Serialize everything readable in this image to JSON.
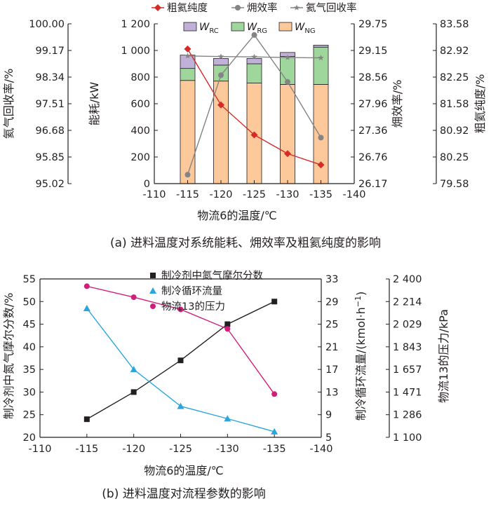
{
  "chart_data": [
    {
      "type": "bar",
      "caption": "(a) 进料温度对系统能耗、㶲效率及粗氦纯度的影响",
      "xlabel": "物流6的温度/℃",
      "x_ticks": [
        "-110",
        "-115",
        "-120",
        "-125",
        "-130",
        "-135",
        "-140"
      ],
      "categories": [
        -115,
        -120,
        -125,
        -130,
        -135
      ],
      "xlim": [
        -110,
        -140
      ],
      "stack_axis": {
        "label": "能耗/kW",
        "ylim": [
          0,
          1200
        ],
        "ticks": [
          "0",
          "200",
          "400",
          "600",
          "800",
          "1 000",
          "1 200"
        ]
      },
      "stacked_series": [
        {
          "name": "W",
          "sub": "NG",
          "color": "#fdc89a",
          "values": [
            775,
            770,
            755,
            745,
            745
          ]
        },
        {
          "name": "W",
          "sub": "RG",
          "color": "#9fd69b",
          "values": [
            90,
            120,
            145,
            210,
            280
          ]
        },
        {
          "name": "W",
          "sub": "RC",
          "color": "#c1b1d8",
          "values": [
            100,
            50,
            40,
            30,
            15
          ]
        }
      ],
      "line_series": [
        {
          "name": "粗氦纯度",
          "axis": "purity",
          "color": "#d42a28",
          "marker": "diamond",
          "values": [
            82.95,
            81.55,
            80.8,
            80.33,
            80.05
          ]
        },
        {
          "name": "㶲效率",
          "axis": "exergy",
          "color": "#848484",
          "marker": "circle",
          "values": [
            26.37,
            28.6,
            29.5,
            28.45,
            27.2
          ]
        },
        {
          "name": "氦气回收率",
          "axis": "recovery",
          "color": "#848484",
          "marker": "star",
          "values": [
            99.0,
            98.98,
            98.97,
            98.95,
            98.94
          ]
        }
      ],
      "axes": {
        "recovery": {
          "label": "氦气回收率/%",
          "ylim": [
            95.02,
            100.0
          ],
          "ticks": [
            "95.02",
            "95.85",
            "96.68",
            "97.51",
            "98.34",
            "99.17",
            "100.00"
          ]
        },
        "exergy": {
          "label": "㶲效率/%",
          "ylim": [
            26.17,
            29.75
          ],
          "ticks": [
            "26.17",
            "26.76",
            "27.36",
            "27.96",
            "28.56",
            "29.15",
            "29.75"
          ]
        },
        "purity": {
          "label": "粗氦纯度/%",
          "ylim": [
            79.58,
            83.58
          ],
          "ticks": [
            "79.58",
            "80.25",
            "80.92",
            "81.58",
            "82.25",
            "82.92",
            "83.58"
          ]
        }
      }
    },
    {
      "type": "line",
      "caption": "(b) 进料温度对流程参数的影响",
      "xlabel": "物流6的温度/℃",
      "x_ticks": [
        "-110",
        "-115",
        "-120",
        "-125",
        "-130",
        "-135",
        "-140"
      ],
      "x": [
        -115,
        -120,
        -125,
        -130,
        -135
      ],
      "xlim": [
        -110,
        -140
      ],
      "series": [
        {
          "name": "制冷剂中氮气摩尔分数",
          "axis": "mole",
          "color": "#231f20",
          "marker": "square",
          "values": [
            24.0,
            30.0,
            37.0,
            45.0,
            50.0
          ]
        },
        {
          "name": "制冷循环流量",
          "axis": "flow",
          "color": "#2aa6dc",
          "marker": "triangle",
          "values": [
            27.8,
            17.0,
            10.5,
            8.3,
            6.0
          ]
        },
        {
          "name": "物流13的压力",
          "axis": "pressure",
          "color": "#cf1f7b",
          "marker": "circle",
          "values": [
            2340,
            2250,
            2150,
            1990,
            1455
          ]
        }
      ],
      "axes": {
        "mole": {
          "label": "制冷剂中氮气摩尔分数/%",
          "ylim": [
            20,
            55
          ],
          "ticks": [
            "20",
            "25",
            "30",
            "35",
            "40",
            "45",
            "50",
            "55"
          ]
        },
        "flow": {
          "label_main": "制冷循环流量/(kmol·h",
          "label_sup": "−1",
          "label_end": ")",
          "ylim": [
            5,
            33
          ],
          "ticks": [
            "5",
            "9",
            "13",
            "17",
            "21",
            "25",
            "29",
            "33"
          ]
        },
        "pressure": {
          "label": "物流13的压力/kPa",
          "ylim": [
            1100,
            2400
          ],
          "ticks": [
            "1 100",
            "1 286",
            "1 471",
            "1 657",
            "1 843",
            "2 029",
            "2 214",
            "2 400"
          ]
        }
      }
    }
  ]
}
